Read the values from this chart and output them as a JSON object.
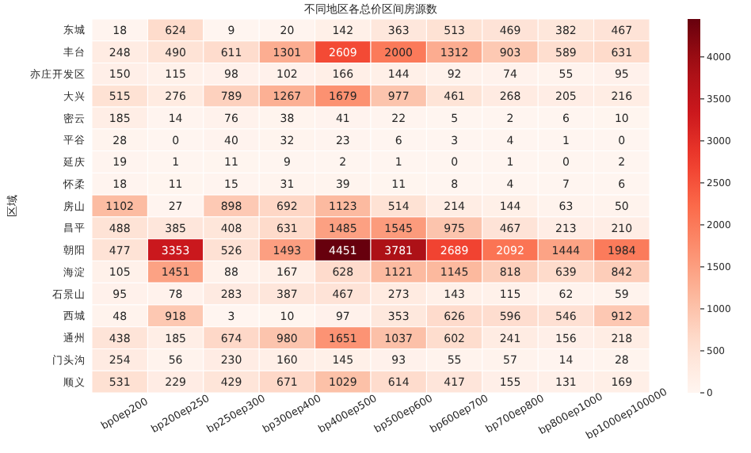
{
  "chart_data": {
    "type": "heatmap",
    "title": "不同地区各总价区间房源数",
    "ylabel": "区域",
    "categories": [
      "bp0ep200",
      "bp200ep250",
      "bp250ep300",
      "bp300ep400",
      "bp400ep500",
      "bp500ep600",
      "bp600ep700",
      "bp700ep800",
      "bp800ep1000",
      "bp1000ep100000"
    ],
    "y_categories": [
      "东城",
      "丰台",
      "亦庄开发区",
      "大兴",
      "密云",
      "平谷",
      "延庆",
      "怀柔",
      "房山",
      "昌平",
      "朝阳",
      "海淀",
      "石景山",
      "西城",
      "通州",
      "门头沟",
      "顺义"
    ],
    "cells": [
      [
        18,
        624,
        9,
        20,
        142,
        363,
        513,
        469,
        382,
        467
      ],
      [
        248,
        490,
        611,
        1301,
        2609,
        2000,
        1312,
        903,
        589,
        631
      ],
      [
        150,
        115,
        98,
        102,
        166,
        144,
        92,
        74,
        55,
        95
      ],
      [
        515,
        276,
        789,
        1267,
        1679,
        977,
        461,
        268,
        205,
        216
      ],
      [
        185,
        14,
        76,
        38,
        41,
        22,
        5,
        2,
        6,
        10
      ],
      [
        28,
        0,
        40,
        32,
        23,
        6,
        3,
        4,
        1,
        0
      ],
      [
        19,
        1,
        11,
        9,
        2,
        1,
        0,
        1,
        0,
        2
      ],
      [
        18,
        11,
        15,
        31,
        39,
        11,
        8,
        4,
        7,
        6
      ],
      [
        1102,
        27,
        898,
        692,
        1123,
        514,
        214,
        144,
        63,
        50
      ],
      [
        488,
        385,
        408,
        631,
        1485,
        1545,
        975,
        467,
        213,
        210
      ],
      [
        477,
        3353,
        526,
        1493,
        4451,
        3781,
        2689,
        2092,
        1444,
        1984
      ],
      [
        105,
        1451,
        88,
        167,
        628,
        1121,
        1145,
        818,
        639,
        842
      ],
      [
        95,
        78,
        283,
        387,
        467,
        273,
        143,
        115,
        62,
        59
      ],
      [
        48,
        918,
        3,
        10,
        97,
        353,
        626,
        596,
        546,
        912
      ],
      [
        438,
        185,
        674,
        980,
        1651,
        1037,
        602,
        241,
        156,
        218
      ],
      [
        254,
        56,
        230,
        160,
        145,
        93,
        55,
        57,
        14,
        28
      ],
      [
        531,
        229,
        429,
        671,
        1029,
        614,
        417,
        155,
        131,
        169
      ]
    ],
    "data_labels": true,
    "clim": [
      0,
      4451
    ],
    "cticks": [
      0,
      500,
      1000,
      1500,
      2000,
      2500,
      3000,
      3500,
      4000
    ]
  }
}
